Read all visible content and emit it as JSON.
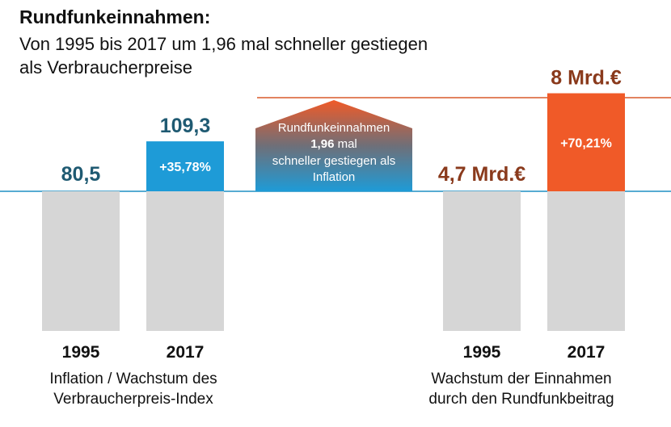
{
  "header": {
    "title": "Rundfunkeinnahmen:",
    "subtitle_line1": "Von 1995 bis 2017 um 1,96 mal schneller gestiegen",
    "subtitle_line2": "als Verbraucherpreise"
  },
  "arrow": {
    "line1": "Rundfunkeinnahmen",
    "line2_bold": "1,96",
    "line2_rest": " mal",
    "line3": "schneller gestiegen als",
    "line4": "Inflation"
  },
  "colors": {
    "grey": "#d6d6d6",
    "blue": "#1e9bd7",
    "orange": "#f05a28",
    "dark_blue_text": "#1f5a72",
    "dark_red_text": "#8a3a1c"
  },
  "chart_data": [
    {
      "type": "bar",
      "categories": [
        "1995",
        "2017"
      ],
      "values": [
        80.5,
        109.3
      ],
      "value_labels": [
        "80,5",
        "109,3"
      ],
      "increase_label": "+35,78%",
      "caption_line1": "Inflation / Wachstum des",
      "caption_line2": "Verbraucherpreis-Index"
    },
    {
      "type": "bar",
      "categories": [
        "1995",
        "2017"
      ],
      "values": [
        4.7,
        8.0
      ],
      "value_labels": [
        "4,7 Mrd.€",
        "8 Mrd.€"
      ],
      "increase_label": "+70,21%",
      "caption_line1": "Wachstum der Einnahmen",
      "caption_line2": "durch den Rundfunkbeitrag"
    }
  ]
}
